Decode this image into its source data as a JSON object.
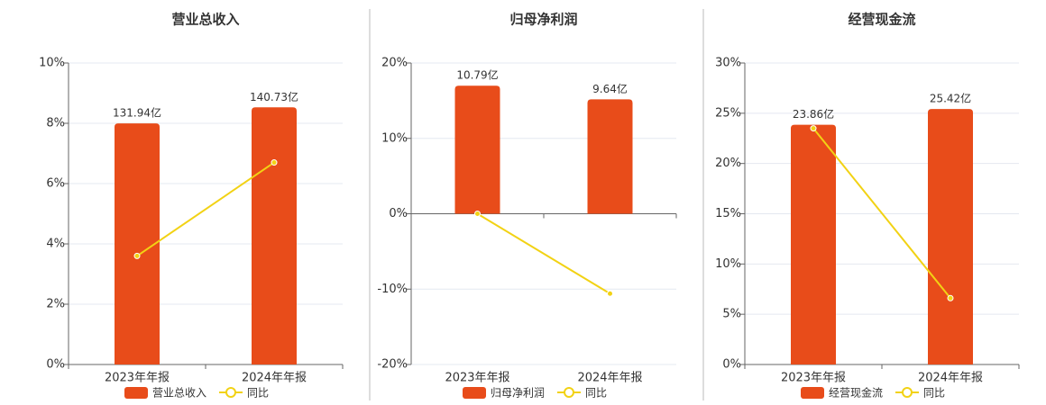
{
  "chart_data": [
    {
      "type": "combo",
      "title": "营业总收入",
      "categories": [
        "2023年年报",
        "2024年年报"
      ],
      "series": [
        {
          "name": "营业总收入",
          "type": "bar",
          "color": "#e84c1a",
          "axis": "y2",
          "values": [
            131.94,
            140.73
          ],
          "value_labels": [
            "131.94亿",
            "140.73亿"
          ]
        },
        {
          "name": "同比",
          "type": "line",
          "color": "#f2d214",
          "values": [
            3.6,
            6.7
          ]
        }
      ],
      "ylim": [
        0,
        10
      ],
      "yticks": [
        {
          "value": 0,
          "label": "0%"
        },
        {
          "value": 2,
          "label": "2%"
        },
        {
          "value": 4,
          "label": "4%"
        },
        {
          "value": 6,
          "label": "6%"
        },
        {
          "value": 8,
          "label": "8%"
        },
        {
          "value": 10,
          "label": "10%"
        }
      ],
      "y2lim": [
        0,
        165
      ],
      "grid": true
    },
    {
      "type": "combo",
      "title": "归母净利润",
      "categories": [
        "2023年年报",
        "2024年年报"
      ],
      "series": [
        {
          "name": "归母净利润",
          "type": "bar",
          "color": "#e84c1a",
          "axis": "y2",
          "values": [
            10.79,
            9.64
          ],
          "value_labels": [
            "10.79亿",
            "9.64亿"
          ]
        },
        {
          "name": "同比",
          "type": "line",
          "color": "#f2d214",
          "values": [
            0,
            -10.6
          ]
        }
      ],
      "ylim": [
        -20,
        20
      ],
      "yticks": [
        {
          "value": -20,
          "label": "-20%"
        },
        {
          "value": -10,
          "label": "-10%"
        },
        {
          "value": 0,
          "label": "0%"
        },
        {
          "value": 10,
          "label": "10%"
        },
        {
          "value": 20,
          "label": "20%"
        }
      ],
      "y2lim": [
        -12.7,
        12.7
      ],
      "grid": true
    },
    {
      "type": "combo",
      "title": "经营现金流",
      "categories": [
        "2023年年报",
        "2024年年报"
      ],
      "series": [
        {
          "name": "经营现金流",
          "type": "bar",
          "color": "#e84c1a",
          "axis": "y2",
          "values": [
            23.86,
            25.42
          ],
          "value_labels": [
            "23.86亿",
            "25.42亿"
          ]
        },
        {
          "name": "同比",
          "type": "line",
          "color": "#f2d214",
          "values": [
            23.5,
            6.6
          ]
        }
      ],
      "ylim": [
        0,
        30
      ],
      "yticks": [
        {
          "value": 0,
          "label": "0%"
        },
        {
          "value": 5,
          "label": "5%"
        },
        {
          "value": 10,
          "label": "10%"
        },
        {
          "value": 15,
          "label": "15%"
        },
        {
          "value": 20,
          "label": "20%"
        },
        {
          "value": 25,
          "label": "25%"
        },
        {
          "value": 30,
          "label": "30%"
        }
      ],
      "y2lim": [
        0,
        30
      ],
      "grid": true
    }
  ]
}
